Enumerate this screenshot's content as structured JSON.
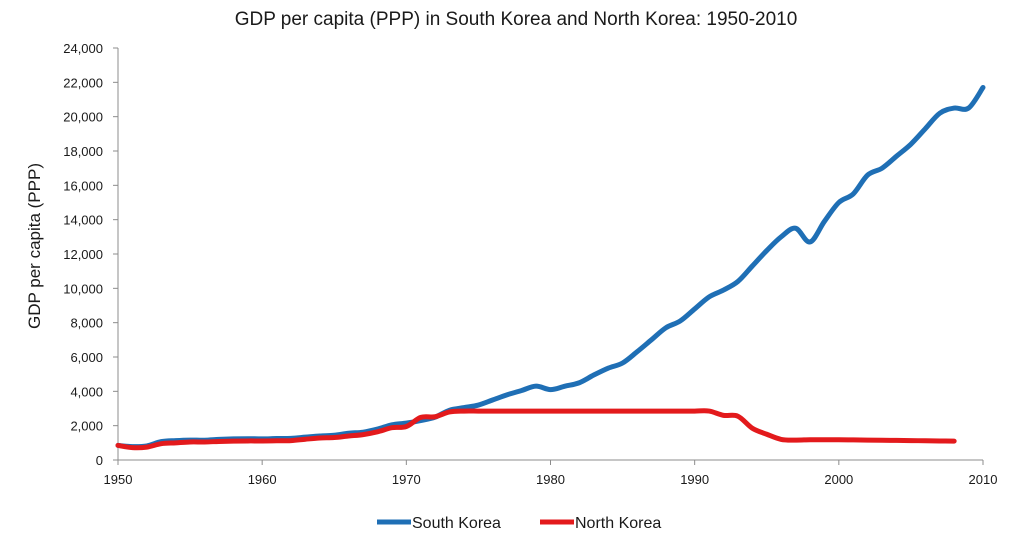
{
  "chart_data": {
    "type": "line",
    "title": "GDP per capita (PPP) in South Korea and North Korea: 1950-2010",
    "xlabel": "",
    "ylabel": "GDP per capita (PPP)",
    "xlim": [
      1950,
      2010
    ],
    "ylim": [
      0,
      24000
    ],
    "x_ticks": [
      1950,
      1960,
      1970,
      1980,
      1990,
      2000,
      2010
    ],
    "y_ticks": [
      0,
      2000,
      4000,
      6000,
      8000,
      10000,
      12000,
      14000,
      16000,
      18000,
      20000,
      22000,
      24000
    ],
    "y_tick_labels": [
      "0",
      "2,000",
      "4,000",
      "6,000",
      "8,000",
      "10,000",
      "12,000",
      "14,000",
      "16,000",
      "18,000",
      "20,000",
      "22,000",
      "24,000"
    ],
    "x_tick_labels": [
      "1950",
      "1960",
      "1970",
      "1980",
      "1990",
      "2000",
      "2010"
    ],
    "grid": false,
    "legend_position": "bottom",
    "series": [
      {
        "name": "South Korea",
        "color": "#1f6fb5",
        "x": [
          1950,
          1951,
          1952,
          1953,
          1954,
          1955,
          1956,
          1957,
          1958,
          1959,
          1960,
          1961,
          1962,
          1963,
          1964,
          1965,
          1966,
          1967,
          1968,
          1969,
          1970,
          1971,
          1972,
          1973,
          1974,
          1975,
          1976,
          1977,
          1978,
          1979,
          1980,
          1981,
          1982,
          1983,
          1984,
          1985,
          1986,
          1987,
          1988,
          1989,
          1990,
          1991,
          1992,
          1993,
          1994,
          1995,
          1996,
          1997,
          1998,
          1999,
          2000,
          2001,
          2002,
          2003,
          2004,
          2005,
          2006,
          2007,
          2008,
          2009,
          2010
        ],
        "values": [
          850,
          780,
          820,
          1070,
          1130,
          1160,
          1150,
          1200,
          1230,
          1240,
          1230,
          1250,
          1260,
          1330,
          1400,
          1440,
          1560,
          1620,
          1800,
          2050,
          2150,
          2300,
          2500,
          2900,
          3050,
          3200,
          3500,
          3800,
          4050,
          4300,
          4100,
          4300,
          4500,
          4950,
          5350,
          5650,
          6300,
          7000,
          7700,
          8100,
          8800,
          9500,
          9900,
          10400,
          11300,
          12200,
          13000,
          13500,
          12700,
          13900,
          15000,
          15500,
          16600,
          17000,
          17700,
          18400,
          19300,
          20200,
          20500,
          20500,
          21700
        ]
      },
      {
        "name": "North Korea",
        "color": "#e31a1c",
        "x": [
          1950,
          1951,
          1952,
          1953,
          1954,
          1955,
          1956,
          1957,
          1958,
          1959,
          1960,
          1961,
          1962,
          1963,
          1964,
          1965,
          1966,
          1967,
          1968,
          1969,
          1970,
          1971,
          1972,
          1973,
          1974,
          1975,
          1976,
          1977,
          1978,
          1979,
          1980,
          1981,
          1982,
          1983,
          1984,
          1985,
          1986,
          1987,
          1988,
          1989,
          1990,
          1991,
          1992,
          1993,
          1994,
          1995,
          1996,
          1997,
          1998,
          1999,
          2000,
          2001,
          2002,
          2003,
          2004,
          2005,
          2006,
          2007,
          2008
        ],
        "values": [
          850,
          720,
          750,
          950,
          1000,
          1050,
          1050,
          1080,
          1100,
          1110,
          1110,
          1120,
          1130,
          1210,
          1280,
          1310,
          1400,
          1480,
          1640,
          1880,
          1950,
          2480,
          2520,
          2800,
          2850,
          2850,
          2850,
          2850,
          2850,
          2850,
          2850,
          2850,
          2850,
          2850,
          2850,
          2850,
          2850,
          2850,
          2850,
          2850,
          2850,
          2850,
          2600,
          2550,
          1850,
          1500,
          1200,
          1160,
          1180,
          1180,
          1180,
          1170,
          1160,
          1150,
          1140,
          1130,
          1120,
          1110,
          1100
        ]
      }
    ]
  }
}
